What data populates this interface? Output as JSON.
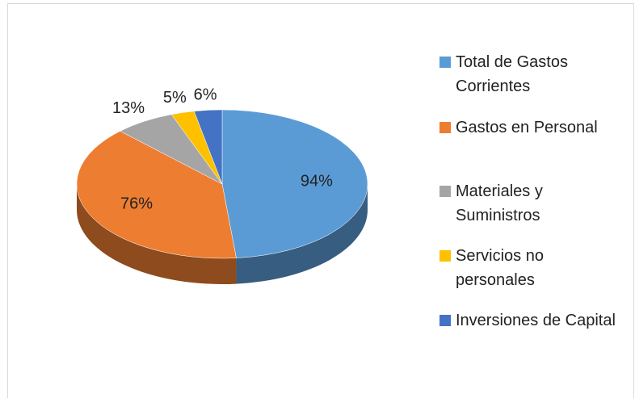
{
  "chart_data": {
    "type": "pie",
    "categories": [
      "Total de Gastos Corrientes",
      "Gastos en Personal",
      "Materiales y Suministros",
      "Servicios no personales",
      "Inversiones de Capital"
    ],
    "values": [
      94,
      76,
      13,
      5,
      6
    ],
    "value_labels": [
      "94%",
      "76%",
      "13%",
      "5%",
      "6%"
    ],
    "colors": [
      "#5b9bd5",
      "#ed7d31",
      "#a5a5a5",
      "#ffc000",
      "#4472c4"
    ],
    "legend": "right"
  }
}
